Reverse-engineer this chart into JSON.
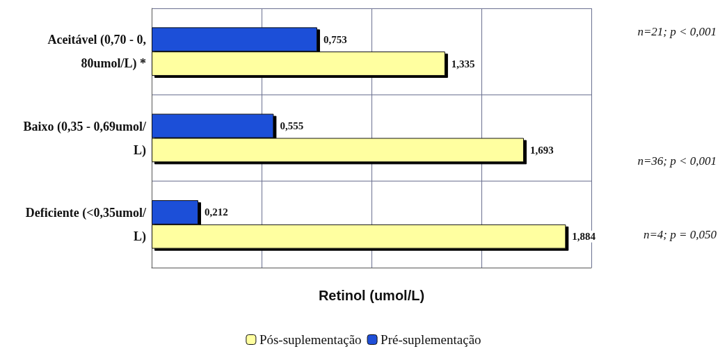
{
  "chart_data": {
    "type": "bar",
    "orientation": "horizontal",
    "xlabel": "Retinol (umol/L)",
    "categories": [
      "Aceitável (0,70 - 0,80umol/L) *",
      "Baixo (0,35 - 0,69umol/L)",
      "Deficiente (<0,35umol/L)"
    ],
    "series": [
      {
        "name": "Pós-suplementação",
        "color": "#ffffa0",
        "values": [
          1.335,
          1.693,
          1.884
        ],
        "value_labels": [
          "1,335",
          "1,693",
          "1,884"
        ]
      },
      {
        "name": "Pré-suplementação",
        "color": "#1f4fd8",
        "values": [
          0.753,
          0.555,
          0.212
        ],
        "value_labels": [
          "0,753",
          "0,555",
          "0,212"
        ]
      }
    ],
    "xlim": [
      0,
      2
    ],
    "xticks": [
      {
        "value": 0,
        "label": null
      },
      {
        "value": 0.5,
        "label": null
      },
      {
        "value": 1,
        "label": null
      },
      {
        "value": 1.5,
        "label": null
      },
      {
        "value": 2,
        "label": null
      }
    ],
    "tick_labels": "y",
    "grid": true,
    "legend": "bottom",
    "annotations": [
      "n=21; p < 0,001",
      "n=36; p < 0,001",
      "n=4; p = 0,050"
    ]
  }
}
